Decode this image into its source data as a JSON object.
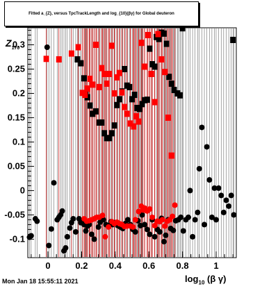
{
  "header": {
    "title": "Fitted a_{Z}, versus TpcTrackLength and log_{10}(βγ) for Global deuteron"
  },
  "footer": {
    "timestamp": "Mon Jan 18 15:55:11 2021"
  },
  "axes": {
    "xlabel_main": "log",
    "xlabel_sub": "10",
    "xlabel_tail": " (β γ)",
    "ylabel_main": "Z",
    "ylabel_sub": "170"
  },
  "colors": {
    "series_black": "#000000",
    "series_red": "#ff0000",
    "errorbar_red": "#cc0000"
  },
  "chart_data": {
    "type": "scatter",
    "title": "Fitted a_{Z}, versus TpcTrackLength and log_{10}(βγ) for Global deuteron",
    "xlim": [
      -0.12,
      1.12
    ],
    "ylim": [
      -0.138,
      0.335
    ],
    "x_ticks": [
      0,
      0.2,
      0.4,
      0.6,
      0.8,
      1
    ],
    "x_tick_labels": [
      "0",
      "0.2",
      "0.4",
      "0.6",
      "0.8",
      "1"
    ],
    "y_ticks": [
      -0.1,
      -0.05,
      0,
      0.05,
      0.1,
      0.15,
      0.2,
      0.25,
      0.3
    ],
    "y_tick_labels": [
      "-0.1",
      "-0.05",
      "0",
      "0.05",
      "0.1",
      "0.15",
      "0.2",
      "0.25",
      "0.3"
    ],
    "grid": false,
    "series": [
      {
        "marker": "circle",
        "color": "#000000",
        "points": [
          [
            -0.11,
            -0.096
          ],
          [
            -0.1,
            -0.093
          ],
          [
            -0.075,
            -0.058
          ],
          [
            -0.065,
            -0.063
          ],
          [
            -0.005,
            0.295
          ],
          [
            0.005,
            -0.113
          ],
          [
            0.02,
            -0.079
          ],
          [
            0.035,
            0.016
          ],
          [
            0.055,
            -0.06
          ],
          [
            0.065,
            -0.055
          ],
          [
            0.075,
            -0.05
          ],
          [
            0.085,
            -0.042
          ],
          [
            0.095,
            -0.124
          ],
          [
            0.105,
            -0.118
          ],
          [
            0.115,
            -0.095
          ],
          [
            0.13,
            -0.077
          ],
          [
            0.14,
            -0.066
          ],
          [
            0.15,
            -0.058
          ],
          [
            0.165,
            -0.085
          ],
          [
            0.185,
            -0.058
          ],
          [
            0.195,
            -0.066
          ],
          [
            0.205,
            -0.062
          ],
          [
            0.215,
            -0.07
          ],
          [
            0.225,
            -0.083
          ],
          [
            0.235,
            -0.073
          ],
          [
            0.245,
            -0.07
          ],
          [
            0.26,
            -0.09
          ],
          [
            0.275,
            -0.1
          ],
          [
            0.3,
            -0.075
          ],
          [
            0.31,
            -0.065
          ],
          [
            0.33,
            -0.06
          ],
          [
            0.345,
            -0.07
          ],
          [
            0.36,
            -0.072
          ],
          [
            0.375,
            -0.064
          ],
          [
            0.385,
            -0.07
          ],
          [
            0.4,
            -0.066
          ],
          [
            0.415,
            -0.072
          ],
          [
            0.43,
            -0.075
          ],
          [
            0.445,
            -0.078
          ],
          [
            0.46,
            -0.068
          ],
          [
            0.475,
            -0.06
          ],
          [
            0.49,
            -0.07
          ],
          [
            0.505,
            -0.08
          ],
          [
            0.52,
            -0.085
          ],
          [
            0.535,
            -0.062
          ],
          [
            0.55,
            -0.072
          ],
          [
            0.56,
            -0.05
          ],
          [
            0.575,
            -0.07
          ],
          [
            0.59,
            -0.08
          ],
          [
            0.605,
            -0.09
          ],
          [
            0.62,
            -0.06
          ],
          [
            0.635,
            -0.095
          ],
          [
            0.65,
            -0.08
          ],
          [
            0.665,
            -0.085
          ],
          [
            0.675,
            -0.057
          ],
          [
            0.69,
            -0.105
          ],
          [
            0.7,
            -0.092
          ],
          [
            0.715,
            -0.06
          ],
          [
            0.73,
            -0.078
          ],
          [
            0.745,
            -0.082
          ],
          [
            0.76,
            -0.062
          ],
          [
            0.775,
            -0.06
          ],
          [
            0.79,
            -0.055
          ],
          [
            0.805,
            -0.083
          ],
          [
            0.82,
            -0.06
          ],
          [
            0.835,
            -0.055
          ],
          [
            0.845,
            0.0
          ],
          [
            0.86,
            -0.095
          ],
          [
            0.875,
            -0.06
          ],
          [
            0.89,
            -0.045
          ],
          [
            0.9,
            0.045
          ],
          [
            0.915,
            0.13
          ],
          [
            0.93,
            -0.07
          ],
          [
            0.945,
            0.09
          ],
          [
            0.96,
            0.022
          ],
          [
            0.975,
            -0.055
          ],
          [
            0.99,
            0.005
          ],
          [
            1.0,
            -0.06
          ],
          [
            1.015,
            0.005
          ],
          [
            1.03,
            -0.01
          ],
          [
            1.045,
            -0.045
          ],
          [
            1.06,
            -0.02
          ],
          [
            1.075,
            -0.032
          ],
          [
            1.09,
            -0.01
          ],
          [
            1.105,
            -0.05
          ]
        ]
      },
      {
        "marker": "square",
        "color": "#000000",
        "points": [
          [
            0.175,
            0.27
          ],
          [
            0.195,
            0.262
          ],
          [
            0.215,
            0.231
          ],
          [
            0.225,
            0.198
          ],
          [
            0.235,
            0.192
          ],
          [
            0.25,
            0.175
          ],
          [
            0.265,
            0.158
          ],
          [
            0.285,
            0.163
          ],
          [
            0.305,
            0.14
          ],
          [
            0.32,
            0.14
          ],
          [
            0.335,
            0.118
          ],
          [
            0.35,
            0.108
          ],
          [
            0.365,
            0.108
          ],
          [
            0.38,
            0.118
          ],
          [
            0.395,
            0.134
          ],
          [
            0.41,
            0.176
          ],
          [
            0.425,
            0.188
          ],
          [
            0.44,
            0.204
          ],
          [
            0.455,
            0.25
          ],
          [
            0.47,
            0.216
          ],
          [
            0.485,
            0.213
          ],
          [
            0.5,
            0.188
          ],
          [
            0.515,
            0.197
          ],
          [
            0.53,
            0.17
          ],
          [
            0.545,
            0.168
          ],
          [
            0.56,
            0.178
          ],
          [
            0.575,
            0.186
          ],
          [
            0.59,
            0.187
          ],
          [
            0.605,
            0.292
          ],
          [
            0.62,
            0.26
          ],
          [
            0.635,
            0.255
          ],
          [
            0.645,
            0.316
          ],
          [
            0.66,
            0.312
          ],
          [
            0.675,
            0.325
          ],
          [
            0.69,
            0.323
          ],
          [
            0.705,
            0.302
          ],
          [
            0.72,
            0.234
          ],
          [
            0.735,
            0.22
          ],
          [
            0.75,
            0.207
          ],
          [
            0.77,
            0.2
          ],
          [
            0.785,
            0.196
          ],
          [
            0.8,
            0.334
          ],
          [
            1.1,
            0.31
          ]
        ]
      },
      {
        "marker": "square",
        "color": "#ff0000",
        "points": [
          [
            -0.01,
            0.271
          ],
          [
            0.065,
            0.27
          ],
          [
            0.14,
            0.282
          ],
          [
            0.18,
            0.295
          ],
          [
            0.205,
            0.201
          ],
          [
            0.22,
            0.197
          ],
          [
            0.235,
            0.21
          ],
          [
            0.25,
            0.23
          ],
          [
            0.265,
            0.218
          ],
          [
            0.285,
            0.3
          ],
          [
            0.305,
            0.213
          ],
          [
            0.32,
            0.252
          ],
          [
            0.335,
            0.24
          ],
          [
            0.35,
            0.22
          ],
          [
            0.365,
            0.24
          ],
          [
            0.38,
            0.298
          ],
          [
            0.395,
            0.2
          ],
          [
            0.41,
            0.233
          ],
          [
            0.425,
            0.242
          ],
          [
            0.44,
            0.202
          ],
          [
            0.455,
            0.172
          ],
          [
            0.47,
            0.158
          ],
          [
            0.49,
            0.138
          ],
          [
            0.51,
            0.132
          ],
          [
            0.525,
            0.153
          ],
          [
            0.54,
            0.142
          ],
          [
            0.555,
            0.304
          ],
          [
            0.575,
            0.255
          ],
          [
            0.595,
            0.32
          ],
          [
            0.615,
            0.24
          ],
          [
            0.635,
            0.182
          ],
          [
            0.655,
            0.322
          ],
          [
            0.675,
            0.27
          ],
          [
            0.695,
            0.244
          ],
          [
            0.715,
            0.15
          ],
          [
            0.735,
            0.072
          ]
        ]
      },
      {
        "marker": "circle",
        "color": "#ff0000",
        "points": [
          [
            0.215,
            -0.058
          ],
          [
            0.23,
            -0.063
          ],
          [
            0.245,
            -0.062
          ],
          [
            0.26,
            -0.06
          ],
          [
            0.275,
            -0.058
          ],
          [
            0.29,
            -0.055
          ],
          [
            0.305,
            -0.055
          ],
          [
            0.325,
            -0.051
          ],
          [
            0.34,
            -0.095
          ],
          [
            0.36,
            -0.075
          ],
          [
            0.38,
            -0.064
          ],
          [
            0.395,
            -0.068
          ],
          [
            0.41,
            -0.065
          ],
          [
            0.425,
            -0.068
          ],
          [
            0.44,
            -0.07
          ],
          [
            0.455,
            -0.074
          ],
          [
            0.47,
            -0.073
          ],
          [
            0.49,
            -0.073
          ],
          [
            0.505,
            -0.075
          ],
          [
            0.52,
            -0.06
          ],
          [
            0.54,
            -0.043
          ],
          [
            0.555,
            -0.032
          ],
          [
            0.565,
            -0.04
          ],
          [
            0.575,
            -0.036
          ],
          [
            0.59,
            -0.042
          ],
          [
            0.605,
            -0.038
          ],
          [
            0.62,
            -0.055
          ],
          [
            0.635,
            -0.072
          ],
          [
            0.65,
            -0.063
          ],
          [
            0.665,
            -0.064
          ],
          [
            0.68,
            -0.06
          ],
          [
            0.695,
            -0.073
          ],
          [
            0.71,
            -0.063
          ],
          [
            0.725,
            -0.06
          ],
          [
            0.74,
            -0.053
          ],
          [
            0.755,
            -0.03
          ]
        ]
      }
    ]
  }
}
